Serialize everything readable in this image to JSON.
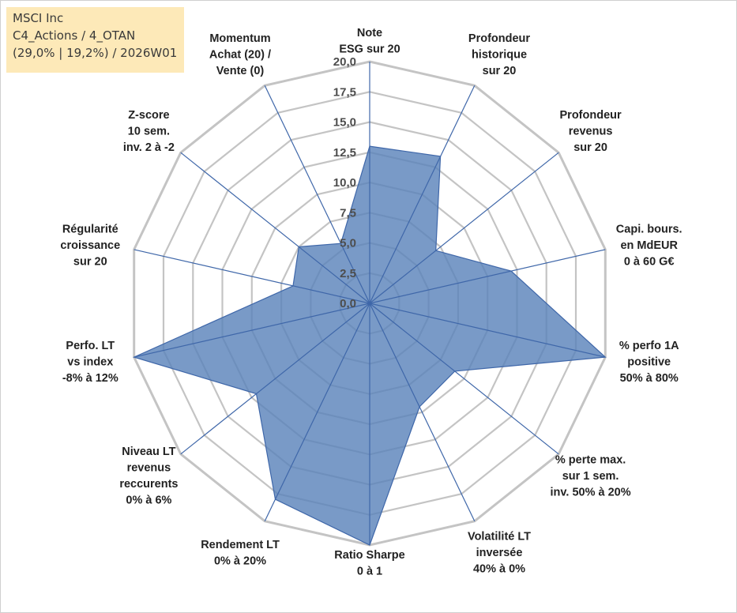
{
  "info_box": {
    "line1": "MSCI Inc",
    "line2": "C4_Actions / 4_OTAN",
    "line3": "(29,0% | 19,2%) / 2026W01"
  },
  "colors": {
    "fill": "#5b84bb",
    "stroke": "#3f67a9",
    "grid": "#c4c4c4",
    "info_bg": "#fde9b8"
  },
  "chart_data": {
    "type": "radar",
    "rmin": 0,
    "rmax": 20,
    "ticks": [
      "0,0",
      "2,5",
      "5,0",
      "7,5",
      "10,0",
      "12,5",
      "15,0",
      "17,5",
      "20,0"
    ],
    "tick_values": [
      0,
      2.5,
      5,
      7.5,
      10,
      12.5,
      15,
      17.5,
      20
    ],
    "grid": true,
    "categories": [
      {
        "label": [
          "Note",
          "ESG sur 20"
        ],
        "value": 13
      },
      {
        "label": [
          "Profondeur",
          "historique",
          "sur 20"
        ],
        "value": 13.5
      },
      {
        "label": [
          "Profondeur",
          "revenus",
          "sur 20"
        ],
        "value": 7
      },
      {
        "label": [
          "Capi. bours.",
          "en MdEUR",
          "0 à 60 G€"
        ],
        "value": 12
      },
      {
        "label": [
          "% perfo 1A",
          "positive",
          "50% à 80%"
        ],
        "value": 20
      },
      {
        "label": [
          "% perte max.",
          "sur 1 sem.",
          "inv. 50% à 20%"
        ],
        "value": 9
      },
      {
        "label": [
          "Volatilité LT",
          "inversée",
          "40% à 0%"
        ],
        "value": 9.5
      },
      {
        "label": [
          "Ratio Sharpe",
          "0 à 1"
        ],
        "value": 20
      },
      {
        "label": [
          "Rendement LT",
          "0% à 20%"
        ],
        "value": 18
      },
      {
        "label": [
          "Niveau LT",
          "revenus",
          "reccurents",
          "0% à 6%"
        ],
        "value": 12
      },
      {
        "label": [
          "Perfo. LT",
          "vs index",
          "-8% à 12%"
        ],
        "value": 20
      },
      {
        "label": [
          "Régularité",
          "croissance",
          "sur 20"
        ],
        "value": 6.5
      },
      {
        "label": [
          "Z-score",
          "10 sem.",
          "inv. 2 à -2"
        ],
        "value": 7.5
      },
      {
        "label": [
          "Momentum",
          "Achat (20) /",
          "Vente (0)"
        ],
        "value": 5.5
      }
    ]
  }
}
